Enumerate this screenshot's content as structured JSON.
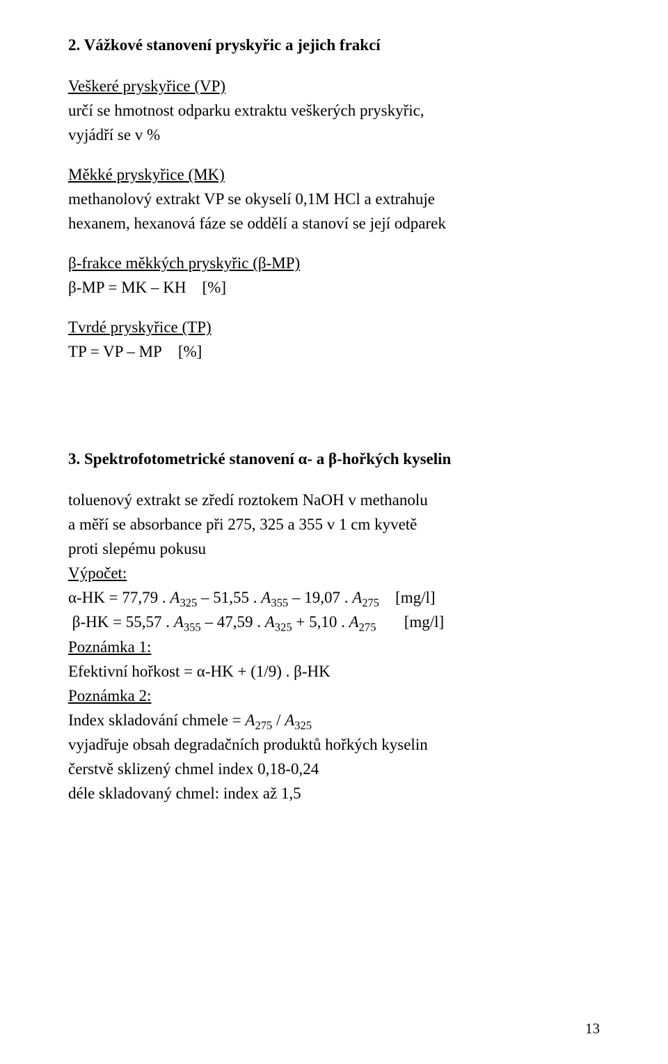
{
  "section2": {
    "title": "2. Vážkové stanovení pryskyřic a jejich frakcí",
    "vp": {
      "head": "Veškeré pryskyřice (VP)",
      "l1": "určí se hmotnost odparku extraktu veškerých pryskyřic,",
      "l2": "vyjádří se v %"
    },
    "mk": {
      "head": "Měkké pryskyřice (MK)",
      "l1": "methanolový extrakt VP se okyselí 0,1M HCl a extrahuje",
      "l2": "hexanem, hexanová fáze se oddělí a stanoví se její odparek"
    },
    "bmp": {
      "head": "β-frakce měkkých pryskyřic (β-MP)",
      "formula_pre": "β-MP = MK – KH",
      "unit": "[%]"
    },
    "tp": {
      "head": "Tvrdé pryskyřice (TP)",
      "formula_pre": "TP = VP – MP",
      "unit": "[%]"
    }
  },
  "section3": {
    "title": "3. Spektrofotometrické stanovení  α- a β-hořkých kyselin",
    "l1": "toluenový extrakt se zředí roztokem NaOH v methanolu",
    "l2": "a měří se absorbance při 275, 325 a 355 v 1 cm kyvetě",
    "l3": "proti slepému pokusu",
    "calc_label": "Výpočet:",
    "alpha_pre": "α-HK = 77,79 . ",
    "A325": "A",
    "alpha_mid1": " – 51,55 . ",
    "alpha_mid2": " – 19,07 . ",
    "unit_mgl": "[mg/l]",
    "beta_pre": "β-HK = 55,57 . ",
    "beta_mid1": " – 47,59 . ",
    "beta_mid2": " + 5,10 . ",
    "note1_label": "Poznámka 1:",
    "note1_text": "Efektivní hořkost = α-HK + (1/9) . β-HK",
    "note2_label": "Poznámka 2:",
    "note2_l1_pre": "Index skladování chmele = ",
    "note2_l1_mid": " / ",
    "note2_l2": "vyjadřuje obsah degradačních produktů hořkých kyselin",
    "note2_l3": "čerstvě sklizený chmel index 0,18-0,24",
    "note2_l4": "déle skladovaný chmel: index až 1,5"
  },
  "subscripts": {
    "s275": "275",
    "s325": "325",
    "s355": "355"
  },
  "page_number": "13"
}
